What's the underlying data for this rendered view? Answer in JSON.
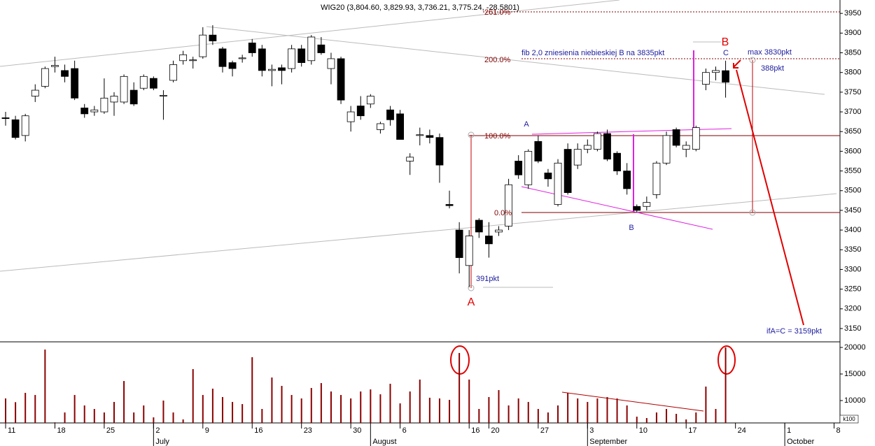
{
  "chart_data": [
    {
      "type": "candlestick",
      "title": "WIG20 (3,804.60, 3,829.93, 3,736.21, 3,775.24, -28.5801)",
      "categories": [
        "11",
        null,
        null,
        null,
        null,
        "18",
        null,
        null,
        null,
        null,
        "25",
        null,
        null,
        null,
        null,
        "2",
        null,
        null,
        null,
        null,
        "9",
        null,
        null,
        null,
        null,
        "16",
        null,
        null,
        null,
        null,
        "23",
        null,
        null,
        null,
        null,
        "30",
        null,
        null,
        null,
        null,
        "6",
        null,
        null,
        null,
        null,
        null,
        null,
        "16",
        null,
        "20",
        null,
        null,
        null,
        null,
        "27",
        null,
        null,
        null,
        null,
        "3",
        null,
        null,
        null,
        null,
        "10",
        null,
        null,
        null,
        null,
        "17",
        null,
        null,
        null,
        null,
        "24",
        null,
        null,
        null,
        null,
        "1",
        null,
        null,
        null,
        null,
        "8"
      ],
      "months": [
        null,
        null,
        null,
        null,
        null,
        null,
        null,
        null,
        null,
        null,
        null,
        null,
        null,
        null,
        null,
        "July",
        null,
        null,
        null,
        null,
        null,
        null,
        null,
        null,
        null,
        null,
        null,
        null,
        null,
        null,
        null,
        null,
        null,
        null,
        null,
        null,
        null,
        "August",
        null,
        null,
        null,
        null,
        null,
        null,
        null,
        null,
        null,
        null,
        null,
        null,
        null,
        null,
        null,
        null,
        null,
        null,
        null,
        null,
        null,
        "September",
        null,
        null,
        null,
        null,
        null,
        null,
        null,
        null,
        null,
        null,
        null,
        null,
        null,
        null,
        null,
        null,
        null,
        null,
        null,
        "October",
        null,
        null,
        null,
        null,
        null
      ],
      "open": [
        3685,
        3680,
        3640,
        3740,
        3765,
        3815,
        3805,
        3810,
        3710,
        3700,
        3700,
        3725,
        3725,
        3755,
        3760,
        3785,
        3740,
        3780,
        3830,
        3830,
        3840,
        3895,
        3860,
        3825,
        3835,
        3875,
        3860,
        3805,
        3812,
        3810,
        3860,
        3830,
        3870,
        3810,
        3835,
        3675,
        3715,
        3720,
        3655,
        3705,
        3695,
        3575,
        3640,
        3640,
        3635,
        3465,
        3400,
        3310,
        3425,
        3385,
        3395,
        3410,
        3575,
        3515,
        3625,
        3545,
        3465,
        3605,
        3565,
        3605,
        3605,
        3645,
        3595,
        3550,
        3460,
        3460,
        3490,
        3570,
        3655,
        3605,
        3605,
        3770,
        3800,
        3804.6,
        null,
        null,
        null,
        null,
        null,
        null,
        null,
        null,
        null,
        null,
        null
      ],
      "high": [
        3700,
        3690,
        3695,
        3770,
        3815,
        3840,
        3820,
        3830,
        3720,
        3715,
        3785,
        3750,
        3795,
        3775,
        3795,
        3790,
        3755,
        3830,
        3855,
        3840,
        3915,
        3920,
        3865,
        3830,
        3845,
        3885,
        3870,
        3820,
        3820,
        3870,
        3870,
        3895,
        3890,
        3850,
        3840,
        3715,
        3740,
        3745,
        3675,
        3715,
        3705,
        3595,
        3660,
        3655,
        3645,
        3500,
        3420,
        3400,
        3430,
        3420,
        3410,
        3530,
        3590,
        3605,
        3640,
        3555,
        3580,
        3620,
        3620,
        3630,
        3650,
        3655,
        3600,
        3570,
        3465,
        3485,
        3575,
        3650,
        3660,
        3625,
        3665,
        3810,
        3815,
        3829.93,
        null,
        null,
        null,
        null,
        null,
        null,
        null,
        null,
        null,
        null,
        null
      ],
      "low": [
        3665,
        3630,
        3625,
        3725,
        3760,
        3800,
        3775,
        3730,
        3685,
        3690,
        3695,
        3690,
        3720,
        3715,
        3755,
        3755,
        3680,
        3775,
        3820,
        3810,
        3835,
        3870,
        3800,
        3790,
        3825,
        3840,
        3790,
        3765,
        3770,
        3800,
        3815,
        3820,
        3845,
        3770,
        3720,
        3650,
        3680,
        3710,
        3645,
        3665,
        3630,
        3540,
        3615,
        3620,
        3520,
        3455,
        3290,
        3255,
        3380,
        3330,
        3385,
        3400,
        3530,
        3505,
        3570,
        3510,
        3460,
        3490,
        3555,
        3595,
        3600,
        3575,
        3540,
        3490,
        3445,
        3450,
        3480,
        3565,
        3610,
        3585,
        3600,
        3755,
        3780,
        3736.21,
        null,
        null,
        null,
        null,
        null,
        null,
        null,
        null,
        null,
        null,
        null
      ],
      "close": [
        3683,
        3635,
        3690,
        3755,
        3810,
        3818,
        3790,
        3735,
        3695,
        3705,
        3735,
        3740,
        3790,
        3720,
        3790,
        3760,
        3742,
        3820,
        3845,
        3832,
        3895,
        3880,
        3815,
        3810,
        3837,
        3850,
        3805,
        3808,
        3805,
        3860,
        3825,
        3890,
        3850,
        3835,
        3730,
        3700,
        3690,
        3740,
        3670,
        3680,
        3630,
        3585,
        3642,
        3635,
        3565,
        3462,
        3330,
        3385,
        3395,
        3365,
        3400,
        3515,
        3540,
        3600,
        3575,
        3530,
        3570,
        3495,
        3605,
        3615,
        3645,
        3580,
        3550,
        3505,
        3450,
        3470,
        3570,
        3640,
        3615,
        3615,
        3660,
        3800,
        3805,
        3775.24,
        null,
        null,
        null,
        null,
        null,
        null,
        null,
        null,
        null,
        null,
        null
      ],
      "up_color": "#ffffff",
      "down_color": "#000000",
      "ylim": [
        3118,
        3984
      ],
      "yticks": [
        3150,
        3200,
        3250,
        3300,
        3350,
        3400,
        3450,
        3500,
        3550,
        3600,
        3650,
        3700,
        3750,
        3800,
        3850,
        3900,
        3950
      ],
      "annotations": [
        "261.0%",
        "200.0%",
        "100.0%",
        "0.0%",
        "fib 2,0 zniesienia niebieskiej B na 3835pkt",
        "B",
        "C",
        "max 3830pkt",
        "388pkt",
        "A",
        "B",
        "391pkt",
        "A",
        "ifA=C = 3159pkt"
      ]
    },
    {
      "type": "bar",
      "values": [
        10400,
        9700,
        11450,
        11050,
        19600,
        5900,
        7760,
        11050,
        9080,
        8420,
        7760,
        9740,
        13680,
        7760,
        9080,
        6840,
        10000,
        7760,
        6450,
        15920,
        11050,
        12240,
        10660,
        9740,
        9340,
        18160,
        8420,
        14340,
        12760,
        11050,
        10400,
        12370,
        13290,
        11710,
        11050,
        10400,
        11710,
        12100,
        11180,
        13160,
        9470,
        11710,
        13950,
        10530,
        10400,
        10130,
        18950,
        13950,
        8420,
        10660,
        11970,
        9080,
        10400,
        9740,
        8420,
        7760,
        9080,
        11450,
        10400,
        9740,
        10400,
        10660,
        10400,
        9080,
        6970,
        6710,
        7760,
        8420,
        7500,
        6450,
        7760,
        12630,
        8420,
        20000,
        null,
        null,
        null,
        null,
        null,
        null,
        null,
        null,
        null,
        null,
        null
      ],
      "color": "#8b0000",
      "ylim": [
        5790,
        20920
      ],
      "yticks": [
        10000,
        15000,
        20000
      ],
      "unit_label": "k100"
    }
  ]
}
